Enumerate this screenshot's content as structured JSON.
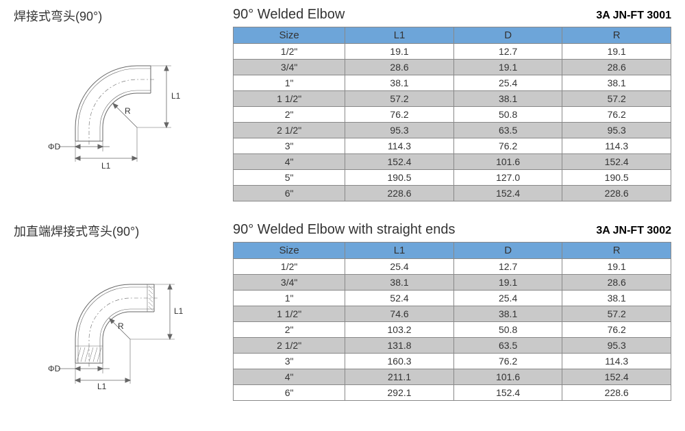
{
  "colors": {
    "header_bg": "#6da5d9",
    "row_odd_bg": "#ffffff",
    "row_even_bg": "#c9c9c9",
    "border": "#888888",
    "text": "#333333",
    "diagram_stroke": "#666666"
  },
  "section1": {
    "cn_title": "焊接式弯头(90°)",
    "en_title": "90° Welded Elbow",
    "code": "3A   JN-FT 3001",
    "columns": [
      "Size",
      "L1",
      "D",
      "R"
    ],
    "rows": [
      [
        "1/2\"",
        "19.1",
        "12.7",
        "19.1"
      ],
      [
        "3/4\"",
        "28.6",
        "19.1",
        "28.6"
      ],
      [
        "1\"",
        "38.1",
        "25.4",
        "38.1"
      ],
      [
        "1 1/2\"",
        "57.2",
        "38.1",
        "57.2"
      ],
      [
        "2\"",
        "76.2",
        "50.8",
        "76.2"
      ],
      [
        "2 1/2\"",
        "95.3",
        "63.5",
        "95.3"
      ],
      [
        "3\"",
        "114.3",
        "76.2",
        "114.3"
      ],
      [
        "4\"",
        "152.4",
        "101.6",
        "152.4"
      ],
      [
        "5\"",
        "190.5",
        "127.0",
        "190.5"
      ],
      [
        "6\"",
        "228.6",
        "152.4",
        "228.6"
      ]
    ],
    "diagram_labels": {
      "phi_d": "ΦD",
      "l1": "L1",
      "r": "R"
    }
  },
  "section2": {
    "cn_title": "加直端焊接式弯头(90°)",
    "en_title": "90° Welded Elbow with straight ends",
    "code": "3A   JN-FT 3002",
    "columns": [
      "Size",
      "L1",
      "D",
      "R"
    ],
    "rows": [
      [
        "1/2\"",
        "25.4",
        "12.7",
        "19.1"
      ],
      [
        "3/4\"",
        "38.1",
        "19.1",
        "28.6"
      ],
      [
        "1\"",
        "52.4",
        "25.4",
        "38.1"
      ],
      [
        "1 1/2\"",
        "74.6",
        "38.1",
        "57.2"
      ],
      [
        "2\"",
        "103.2",
        "50.8",
        "76.2"
      ],
      [
        "2 1/2\"",
        "131.8",
        "63.5",
        "95.3"
      ],
      [
        "3\"",
        "160.3",
        "76.2",
        "114.3"
      ],
      [
        "4\"",
        "211.1",
        "101.6",
        "152.4"
      ],
      [
        "6\"",
        "292.1",
        "152.4",
        "228.6"
      ]
    ],
    "diagram_labels": {
      "phi_d": "ΦD",
      "l1": "L1",
      "r": "R"
    }
  }
}
